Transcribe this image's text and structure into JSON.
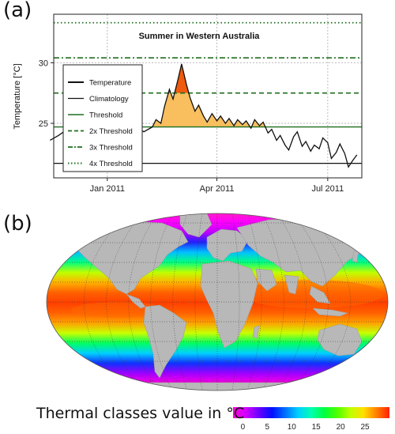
{
  "panel_a_label": "(a)",
  "panel_b_label": "(b)",
  "colorbar_title": "Thermal classes value in °C",
  "chart_data": [
    {
      "type": "line",
      "title": "Summer in Western Australia",
      "ylabel": "Temperature [°C]",
      "xlabel": "",
      "x_ticks": [
        "Jan 2011",
        "Apr 2011",
        "Jul 2011"
      ],
      "y_ticks": [
        25,
        30
      ],
      "ylim": [
        20.5,
        34
      ],
      "grid": true,
      "legend_position": "left",
      "legend": [
        "Temperature",
        "Climatology",
        "Threshold",
        "2x Threshold",
        "3x Threshold",
        "4x Threshold"
      ],
      "thresholds": {
        "climatology": 21.7,
        "threshold": 24.7,
        "threshold_2x": 27.5,
        "threshold_3x": 30.4,
        "threshold_4x": 33.3
      },
      "colors": {
        "temperature": "#111111",
        "climatology": "#111111",
        "threshold": "#1e6e1e",
        "fill_moderate": "#f9be5e",
        "fill_strong": "#ef5a0c"
      },
      "temperature_series": {
        "x": [
          "2010-11-15",
          "2010-11-22",
          "2010-11-29",
          "2010-12-06",
          "2010-12-13",
          "2010-12-20",
          "2010-12-27",
          "2011-01-03",
          "2011-01-10",
          "2011-01-17",
          "2011-01-24",
          "2011-01-31",
          "2011-02-07",
          "2011-02-10",
          "2011-02-14",
          "2011-02-17",
          "2011-02-21",
          "2011-02-24",
          "2011-02-28",
          "2011-03-03",
          "2011-03-07",
          "2011-03-10",
          "2011-03-14",
          "2011-03-17",
          "2011-03-21",
          "2011-03-24",
          "2011-03-28",
          "2011-04-01",
          "2011-04-04",
          "2011-04-08",
          "2011-04-11",
          "2011-04-15",
          "2011-04-18",
          "2011-04-22",
          "2011-04-25",
          "2011-04-29",
          "2011-05-02",
          "2011-05-06",
          "2011-05-09",
          "2011-05-13",
          "2011-05-16",
          "2011-05-20",
          "2011-05-23",
          "2011-05-27",
          "2011-05-30",
          "2011-06-03",
          "2011-06-06",
          "2011-06-10",
          "2011-06-13",
          "2011-06-17",
          "2011-06-20",
          "2011-06-24",
          "2011-06-27",
          "2011-07-01",
          "2011-07-04",
          "2011-07-08",
          "2011-07-11",
          "2011-07-15",
          "2011-07-18",
          "2011-07-22",
          "2011-07-25"
        ],
        "values": [
          23.6,
          24.0,
          24.5,
          23.9,
          24.8,
          24.2,
          24.6,
          24.1,
          24.9,
          23.7,
          24.8,
          24.3,
          24.7,
          25.3,
          25.0,
          26.4,
          27.8,
          27.0,
          28.6,
          29.9,
          28.2,
          27.1,
          26.0,
          26.5,
          25.6,
          25.1,
          25.8,
          25.2,
          25.6,
          25.0,
          25.4,
          24.8,
          25.3,
          24.9,
          25.2,
          24.6,
          25.3,
          24.8,
          25.1,
          24.2,
          24.5,
          23.6,
          24.0,
          23.2,
          22.8,
          23.9,
          24.3,
          23.1,
          23.5,
          22.7,
          23.2,
          22.9,
          23.8,
          23.4,
          22.1,
          22.6,
          23.3,
          22.5,
          21.4,
          22.0,
          22.4
        ]
      }
    },
    {
      "type": "heatmap",
      "title": "",
      "colorbar_ticks": [
        0,
        5,
        10,
        15,
        20,
        25
      ],
      "colorbar_range": [
        -2,
        30
      ],
      "colormap": [
        "#ff00d8",
        "#d000ff",
        "#6800ff",
        "#0010ff",
        "#0070ff",
        "#00d0ff",
        "#00ffb0",
        "#00ff40",
        "#50ff00",
        "#c0ff00",
        "#ffe000",
        "#ff8000",
        "#ff2000"
      ],
      "land_color": "#b5b5b5",
      "projection": "Robinson"
    }
  ]
}
